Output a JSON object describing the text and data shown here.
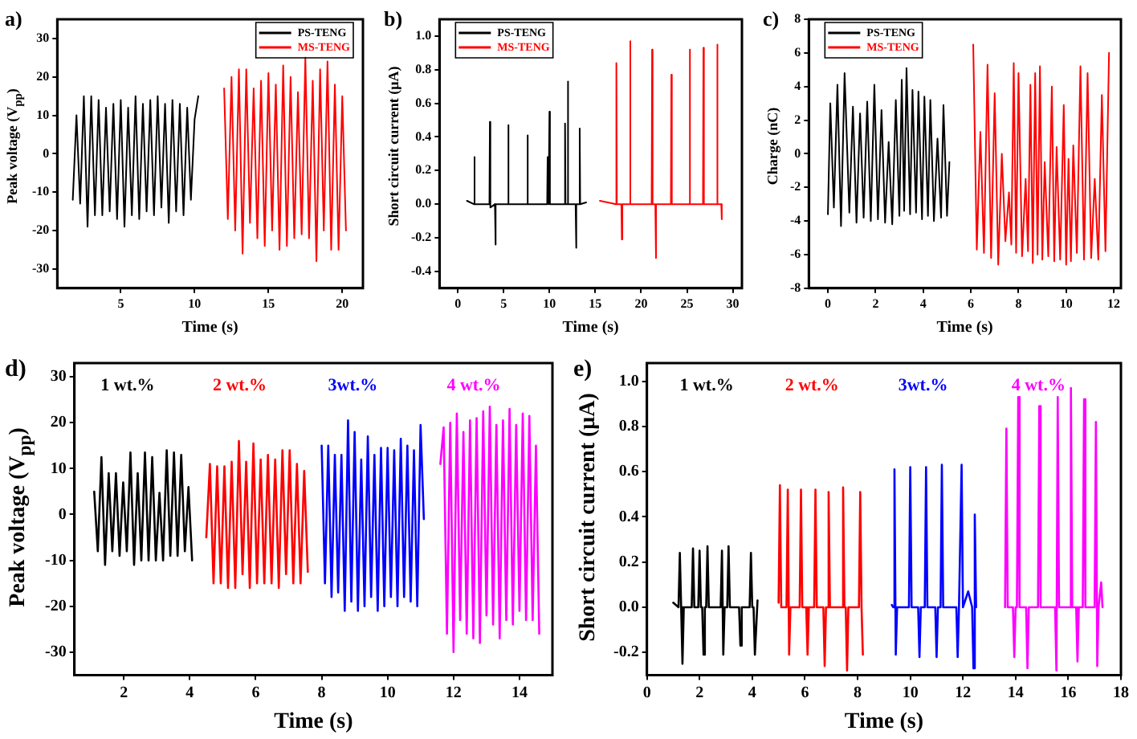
{
  "chart_data": [
    {
      "type": "line",
      "title": "a)",
      "xlabel": "Time (s)",
      "ylabel": "Peak voltage (V$_{pp}$)",
      "xlim": [
        0.7,
        21.4
      ],
      "xticks": [
        5,
        10,
        15,
        20
      ],
      "ylim": [
        -35,
        35
      ],
      "yticks": [
        -30,
        -20,
        -10,
        0,
        10,
        20,
        30
      ],
      "legend": "top right",
      "grid": false,
      "series": [
        {
          "name": "PS-TENG",
          "color": "#000000",
          "x": [
            1.75,
            2,
            2.25,
            2.5,
            2.75,
            3,
            3.25,
            3.5,
            3.75,
            4,
            4.25,
            4.5,
            4.75,
            5,
            5.25,
            5.5,
            5.75,
            6,
            6.25,
            6.5,
            6.75,
            7,
            7.25,
            7.5,
            7.75,
            8,
            8.25,
            8.5,
            8.75,
            9,
            9.25,
            9.5,
            9.75,
            10,
            10.25
          ],
          "values": [
            -12,
            10,
            -13,
            15,
            -19,
            15,
            -16,
            14,
            -16,
            12,
            -15,
            13,
            -17,
            14,
            -19,
            12,
            -16,
            15,
            -17,
            13,
            -15,
            14,
            -16,
            15,
            -14,
            13,
            -18,
            14,
            -15,
            13,
            -16,
            12,
            -12,
            9,
            15
          ]
        },
        {
          "name": "MS-TENG",
          "color": "#ff0000",
          "x": [
            12,
            12.25,
            12.5,
            12.75,
            13,
            13.25,
            13.5,
            13.75,
            14,
            14.25,
            14.5,
            14.75,
            15,
            15.25,
            15.5,
            15.75,
            16,
            16.25,
            16.5,
            16.75,
            17,
            17.25,
            17.5,
            17.75,
            18,
            18.25,
            18.5,
            18.75,
            19,
            19.25,
            19.5,
            19.75,
            20,
            20.25
          ],
          "values": [
            17,
            -17,
            20,
            -20,
            22,
            -26,
            22,
            -18,
            17,
            -22,
            19,
            -24,
            21,
            -20,
            18,
            -25,
            23,
            -24,
            20,
            -22,
            16,
            -21,
            25,
            -22,
            19,
            -28,
            22,
            -20,
            24,
            -25,
            18,
            -25,
            15,
            -20
          ]
        }
      ]
    },
    {
      "type": "line",
      "title": "b)",
      "xlabel": "Time (s)",
      "ylabel": "Short circuit current (μA)",
      "xlim": [
        -2,
        31
      ],
      "xticks": [
        0,
        5,
        10,
        15,
        20,
        25,
        30
      ],
      "ylim": [
        -0.5,
        1.1
      ],
      "yticks": [
        {
          "value": -0.4,
          "label": "-0.4"
        },
        {
          "value": -0.2,
          "label": "-0.2"
        },
        {
          "value": 0,
          "label": "0.0"
        },
        {
          "value": 0.2,
          "label": "0.2"
        },
        {
          "value": 0.4,
          "label": "0.4"
        },
        {
          "value": 0.6,
          "label": "0.6"
        },
        {
          "value": 0.8,
          "label": "0.8"
        },
        {
          "value": 1,
          "label": "1.0"
        }
      ],
      "legend": "top left",
      "grid": false,
      "series": [
        {
          "name": "PS-TENG",
          "color": "#000000",
          "x": [
            1,
            1.75,
            1.8,
            1.85,
            3.45,
            3.5,
            3.55,
            4.05,
            4.1,
            4.15,
            5.45,
            5.5,
            5.55,
            7.55,
            7.6,
            7.65,
            9.75,
            9.8,
            9.85,
            9.95,
            10,
            10.05,
            11.65,
            11.7,
            11.75,
            11.95,
            12,
            12.05,
            12.85,
            12.9,
            12.95,
            13.25,
            13.3,
            13.35,
            14
          ],
          "values": [
            0.02,
            0,
            0.28,
            0,
            0,
            0.49,
            -0.02,
            0,
            -0.24,
            0,
            0,
            0.47,
            0,
            0,
            0.41,
            0,
            0,
            0.28,
            0,
            0,
            0.55,
            0,
            0,
            0.48,
            0,
            0,
            0.73,
            0,
            0,
            -0.26,
            0,
            0,
            0.45,
            0,
            0.01
          ]
        },
        {
          "name": "MS-TENG",
          "color": "#ff0000",
          "x": [
            15.5,
            17.25,
            17.3,
            17.35,
            17.85,
            17.9,
            17.95,
            18.75,
            18.8,
            18.85,
            21.15,
            21.2,
            21.25,
            21.55,
            21.6,
            21.65,
            23.25,
            23.3,
            23.35,
            25.25,
            25.3,
            25.35,
            26.75,
            26.8,
            26.85,
            28.25,
            28.3,
            28.35,
            28.75,
            28.8
          ],
          "values": [
            0.02,
            0,
            0.84,
            0,
            0,
            -0.21,
            0,
            0,
            0.97,
            0,
            0,
            0.92,
            0,
            0,
            -0.32,
            0,
            0,
            0.77,
            0,
            0,
            0.92,
            0,
            0,
            0.93,
            0,
            0,
            0.95,
            0,
            0,
            -0.09
          ]
        }
      ]
    },
    {
      "type": "line",
      "title": "c)",
      "xlabel": "Time (s)",
      "ylabel": "Charge (nC)",
      "xlim": [
        -0.8,
        12.3
      ],
      "xticks": [
        0,
        2,
        4,
        6,
        8,
        10,
        12
      ],
      "ylim": [
        -8,
        8
      ],
      "yticks": [
        -8,
        -6,
        -4,
        -2,
        0,
        2,
        4,
        6,
        8
      ],
      "legend": "top left",
      "grid": false,
      "series": [
        {
          "name": "PS-TENG",
          "color": "#000000",
          "x": [
            0,
            0.1,
            0.25,
            0.4,
            0.55,
            0.7,
            0.9,
            1.05,
            1.2,
            1.35,
            1.5,
            1.65,
            1.8,
            1.95,
            2.1,
            2.25,
            2.4,
            2.55,
            2.7,
            2.85,
            3.0,
            3.1,
            3.2,
            3.3,
            3.45,
            3.55,
            3.7,
            3.8,
            3.95,
            4.05,
            4.2,
            4.3,
            4.45,
            4.6,
            4.75,
            4.85,
            5.0,
            5.1
          ],
          "values": [
            -3.6,
            3,
            -3.2,
            4.1,
            -4.3,
            4.8,
            -3.5,
            2.8,
            -4.1,
            2.4,
            -3.8,
            3.1,
            -4,
            4.1,
            -3.9,
            2.6,
            -4.1,
            0.7,
            -4.2,
            3.2,
            -3.7,
            4.4,
            -3.4,
            5.1,
            -3.6,
            3.8,
            -3.5,
            3.7,
            -3.9,
            3.4,
            -3.7,
            3.2,
            -4,
            0.9,
            -3.8,
            2.9,
            -3.7,
            -0.5
          ]
        },
        {
          "name": "MS-TENG",
          "color": "#ff0000",
          "x": [
            6.1,
            6.25,
            6.4,
            6.55,
            6.7,
            6.85,
            7.0,
            7.15,
            7.3,
            7.45,
            7.6,
            7.7,
            7.8,
            7.9,
            8.0,
            8.15,
            8.3,
            8.4,
            8.5,
            8.6,
            8.7,
            8.8,
            8.9,
            9.0,
            9.1,
            9.25,
            9.4,
            9.5,
            9.6,
            9.75,
            9.9,
            10.0,
            10.1,
            10.2,
            10.3,
            10.45,
            10.6,
            10.75,
            10.9,
            11.05,
            11.2,
            11.35,
            11.5,
            11.65,
            11.8
          ],
          "values": [
            6.5,
            -5.7,
            1.3,
            -5.9,
            5.3,
            -6.2,
            3.6,
            -6.6,
            0,
            -5.2,
            -2.3,
            -5.4,
            5.4,
            -5.9,
            4.8,
            -6.1,
            -1.5,
            -5.8,
            4.1,
            -6.5,
            4.8,
            -6,
            5.2,
            -6.3,
            -0.5,
            -6.1,
            4,
            -6.4,
            0.4,
            -6.3,
            2.9,
            -6.6,
            -0.3,
            -6.4,
            0.5,
            -5.9,
            5.2,
            -6.3,
            4.8,
            -6.2,
            -1.5,
            -6.3,
            3.5,
            -5.8,
            6
          ]
        }
      ]
    },
    {
      "type": "line",
      "title": "d)",
      "xlabel": "Time (s)",
      "ylabel": "Peak voltage (V$_{pp}$)",
      "xlim": [
        0.5,
        15
      ],
      "xticks": [
        2,
        4,
        6,
        8,
        10,
        12,
        14
      ],
      "ylim": [
        -35,
        33
      ],
      "yticks": [
        -30,
        -20,
        -10,
        0,
        10,
        20,
        30
      ],
      "legend": false,
      "grid": false,
      "series": [
        {
          "name": "1 wt.%",
          "color": "#000000",
          "x": [
            1.1,
            1.21,
            1.32,
            1.43,
            1.54,
            1.65,
            1.76,
            1.87,
            1.98,
            2.09,
            2.2,
            2.31,
            2.42,
            2.53,
            2.64,
            2.75,
            2.86,
            2.97,
            3.08,
            3.19,
            3.3,
            3.41,
            3.52,
            3.63,
            3.74,
            3.85,
            3.96,
            4.07
          ],
          "values": [
            5,
            -8,
            12.5,
            -11,
            9,
            -8,
            9,
            -9,
            7,
            -8,
            13.5,
            -11,
            9,
            -10,
            13.5,
            -10,
            12.5,
            -10,
            4.7,
            -10,
            14,
            -9,
            13.5,
            -9,
            13,
            -8,
            6,
            -10
          ]
        },
        {
          "name": "2 wt.%",
          "color": "#ff0000",
          "x": [
            4.5,
            4.61,
            4.72,
            4.83,
            4.94,
            5.05,
            5.16,
            5.27,
            5.38,
            5.49,
            5.6,
            5.71,
            5.82,
            5.93,
            6.04,
            6.15,
            6.26,
            6.37,
            6.48,
            6.59,
            6.7,
            6.81,
            6.92,
            7.03,
            7.14,
            7.25,
            7.36,
            7.47,
            7.58
          ],
          "values": [
            -5,
            11,
            -15,
            10.5,
            -15,
            10.5,
            -16,
            11.5,
            -16,
            16,
            -13,
            11.5,
            -16,
            15.5,
            -15,
            12,
            -15,
            13,
            -15,
            12,
            -16,
            14,
            -13,
            14,
            -15,
            11,
            -15,
            9.5,
            -12.5
          ]
        },
        {
          "name": "3wt.%",
          "color": "#0000ff",
          "x": [
            8,
            8.1,
            8.2,
            8.3,
            8.4,
            8.5,
            8.6,
            8.7,
            8.8,
            8.9,
            9,
            9.1,
            9.2,
            9.3,
            9.4,
            9.5,
            9.6,
            9.7,
            9.8,
            9.9,
            10,
            10.1,
            10.2,
            10.3,
            10.4,
            10.5,
            10.6,
            10.7,
            10.8,
            10.9,
            11,
            11.1
          ],
          "values": [
            15,
            -15,
            15,
            -18,
            13,
            -17,
            13,
            -21,
            20.5,
            -19,
            18,
            -21,
            12,
            -20,
            17,
            -18,
            13,
            -21,
            14.5,
            -20,
            14.5,
            -18,
            14,
            -20,
            16.5,
            -18,
            15,
            -19,
            14,
            -20,
            19.5,
            -1
          ]
        },
        {
          "name": "4 wt.%",
          "color": "#ff00ff",
          "x": [
            11.6,
            11.7,
            11.8,
            11.9,
            12,
            12.1,
            12.2,
            12.3,
            12.4,
            12.5,
            12.6,
            12.7,
            12.8,
            12.9,
            13,
            13.1,
            13.2,
            13.3,
            13.4,
            13.5,
            13.6,
            13.7,
            13.8,
            13.9,
            14,
            14.1,
            14.2,
            14.3,
            14.4,
            14.5,
            14.6
          ],
          "values": [
            11,
            19,
            -26,
            20,
            -30,
            22,
            -23,
            18,
            -26,
            20.5,
            -27,
            21,
            -28,
            22.5,
            -22,
            23.5,
            -24,
            19.5,
            -27,
            20.5,
            -23,
            23,
            -24,
            19.5,
            -21,
            22,
            -23,
            21.5,
            -23,
            15,
            -26
          ]
        }
      ]
    },
    {
      "type": "line",
      "title": "e)",
      "xlabel": "Time (s)",
      "ylabel": "Short circuit current (μA)",
      "xlim": [
        0,
        18
      ],
      "xticks": [
        0,
        2,
        4,
        6,
        8,
        10,
        12,
        14,
        16,
        18
      ],
      "ylim": [
        -0.3,
        1.08
      ],
      "yticks": [
        {
          "value": -0.2,
          "label": "-0.2"
        },
        {
          "value": 0,
          "label": "0.0"
        },
        {
          "value": 0.2,
          "label": "0.2"
        },
        {
          "value": 0.4,
          "label": "0.4"
        },
        {
          "value": 0.6,
          "label": "0.6"
        },
        {
          "value": 0.8,
          "label": "0.8"
        },
        {
          "value": 1,
          "label": "1.0"
        }
      ],
      "legend": false,
      "grid": false,
      "series": [
        {
          "name": "1 wt.%",
          "color": "#000000",
          "x": [
            1,
            1.2,
            1.25,
            1.3,
            1.35,
            1.4,
            1.7,
            1.75,
            1.8,
            1.95,
            2,
            2.05,
            2.1,
            2.15,
            2.2,
            2.25,
            2.3,
            2.35,
            2.8,
            2.85,
            2.9,
            2.95,
            3.05,
            3.1,
            3.15,
            3.5,
            3.55,
            3.6,
            3.9,
            3.95,
            4.0,
            4.05,
            4.1,
            4.2
          ],
          "values": [
            0.02,
            0,
            0.24,
            0,
            -0.25,
            0,
            0,
            0.26,
            0,
            0,
            0.25,
            0,
            0,
            -0.21,
            0,
            0,
            0.27,
            0,
            0,
            0.25,
            -0.21,
            0,
            0,
            0.27,
            0,
            0,
            -0.17,
            0,
            0,
            0.24,
            0,
            0,
            -0.21,
            0.03
          ]
        },
        {
          "name": "2 wt.%",
          "color": "#ff0000",
          "x": [
            5,
            5.05,
            5.1,
            5.3,
            5.35,
            5.4,
            5.45,
            5.8,
            5.85,
            5.9,
            6.05,
            6.1,
            6.15,
            6.35,
            6.4,
            6.45,
            6.7,
            6.75,
            6.8,
            6.85,
            6.9,
            6.95,
            7.4,
            7.45,
            7.5,
            7.55,
            7.6,
            7.65,
            8.05,
            8.1,
            8.15,
            8.2
          ],
          "values": [
            0.02,
            0.54,
            0,
            0,
            0.52,
            -0.21,
            0,
            0,
            0.52,
            0,
            0,
            -0.21,
            0,
            0,
            0.52,
            0,
            0,
            -0.26,
            0,
            0,
            0.51,
            0,
            0,
            0.53,
            0,
            0,
            -0.28,
            0,
            0,
            0.51,
            0,
            -0.21
          ]
        },
        {
          "name": "3wt.%",
          "color": "#0000ff",
          "x": [
            9.3,
            9.35,
            9.4,
            9.45,
            9.5,
            9.95,
            10,
            10.05,
            10.3,
            10.35,
            10.4,
            10.55,
            10.6,
            10.65,
            10.95,
            11,
            11.05,
            11.15,
            11.2,
            11.25,
            11.75,
            11.8,
            11.85,
            11.9,
            11.95,
            12,
            12.2,
            12.35,
            12.4,
            12.45,
            12.5
          ],
          "values": [
            0.01,
            0,
            0.61,
            -0.21,
            0,
            0,
            0.62,
            0,
            0,
            -0.22,
            0,
            0,
            0.62,
            0,
            0,
            -0.22,
            0,
            0,
            0.63,
            0,
            0,
            -0.22,
            0,
            0,
            0.63,
            0,
            0.07,
            0,
            -0.27,
            0.41,
            0
          ]
        },
        {
          "name": "4 wt.%",
          "color": "#ff00ff",
          "x": [
            13.6,
            13.65,
            13.7,
            13.9,
            13.95,
            14,
            14.05,
            14.1,
            14.15,
            14.4,
            14.45,
            14.5,
            14.85,
            14.9,
            14.95,
            15.5,
            15.55,
            15.6,
            15.65,
            16.05,
            16.1,
            16.15,
            16.3,
            16.35,
            16.4,
            16.55,
            16.6,
            16.65,
            17,
            17.05,
            17.1,
            17.15,
            17.25,
            17.3
          ],
          "values": [
            0,
            0.79,
            0,
            0,
            -0.22,
            0,
            0,
            0.93,
            0,
            0,
            -0.27,
            0,
            0,
            0.89,
            0,
            0,
            -0.28,
            0.93,
            0,
            0,
            0.97,
            0,
            0,
            -0.24,
            0,
            0,
            0.92,
            0,
            0,
            0.82,
            -0.26,
            0,
            0.11,
            0
          ]
        }
      ]
    }
  ]
}
